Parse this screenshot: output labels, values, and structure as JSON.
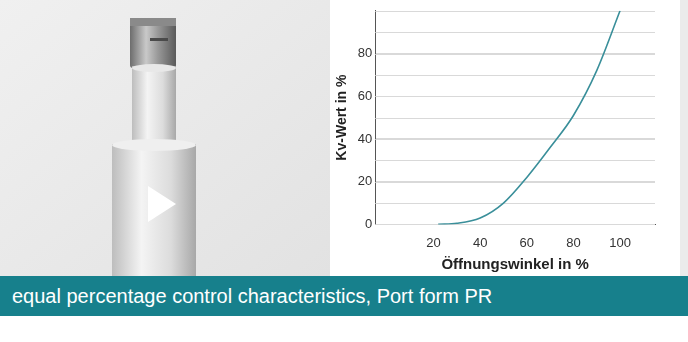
{
  "chart_data": {
    "type": "line",
    "xlabel": "Öffnungswinkel in %",
    "ylabel": "Kv-Wert in %",
    "x": [
      22,
      30,
      40,
      50,
      60,
      70,
      80,
      90,
      100
    ],
    "values": [
      0,
      0.5,
      3,
      10,
      22,
      36,
      51,
      72,
      100
    ],
    "color": "#3a8f9a",
    "xlim": [
      -5,
      115
    ],
    "xticks": [
      20,
      40,
      60,
      80,
      100
    ],
    "ylim": [
      0,
      100
    ],
    "yticks": [
      0,
      20,
      40,
      60,
      80
    ],
    "grid": true
  },
  "banner": "equal percentage control characteristics, Port form PR"
}
